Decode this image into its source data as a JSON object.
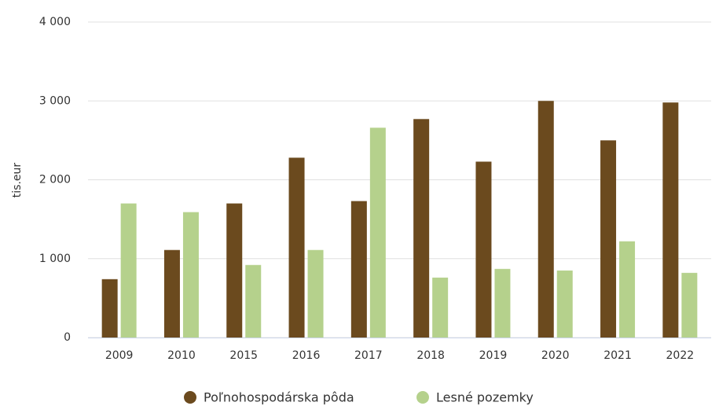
{
  "chart_data": {
    "type": "bar",
    "y_axis_label": "tis.eur",
    "categories": [
      "2009",
      "2010",
      "2015",
      "2016",
      "2017",
      "2018",
      "2019",
      "2020",
      "2021",
      "2022"
    ],
    "series": [
      {
        "name": "Poľnohospodárska pôda",
        "color": "#6b4a1e",
        "values": [
          740,
          1110,
          1700,
          2280,
          1730,
          2770,
          2230,
          3000,
          2500,
          2980
        ]
      },
      {
        "name": "Lesné pozemky",
        "color": "#b5d18c",
        "values": [
          1700,
          1590,
          920,
          1110,
          2660,
          760,
          870,
          850,
          1220,
          820
        ]
      }
    ],
    "ylim": [
      0,
      4000
    ],
    "yticks": [
      0,
      {
        "value": 1000,
        "label": "1 000"
      },
      {
        "value": 2000,
        "label": "2 000"
      },
      {
        "value": 3000,
        "label": "3 000"
      },
      {
        "value": 4000,
        "label": "4 000"
      }
    ],
    "grid": true,
    "legend": "bottom"
  }
}
